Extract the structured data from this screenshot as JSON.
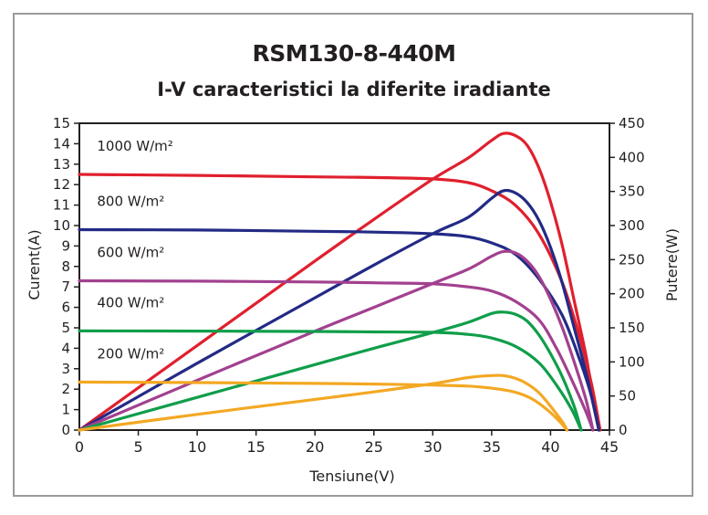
{
  "chart_data": {
    "type": "line",
    "title": "RSM130-8-440M",
    "subtitle": "I-V caracteristici la diferite iradiante",
    "xlabel": "Tensiune(V)",
    "ylabel_left": "Curent(A)",
    "ylabel_right": "Putere(W)",
    "xlim": [
      0,
      45
    ],
    "ylim_left": [
      0,
      15
    ],
    "ylim_right": [
      0,
      450
    ],
    "xticks": [
      0,
      5,
      10,
      15,
      20,
      25,
      30,
      35,
      40,
      45
    ],
    "yticks_left": [
      0,
      1,
      2,
      3,
      4,
      5,
      6,
      7,
      8,
      9,
      10,
      11,
      12,
      13,
      14,
      15
    ],
    "yticks_right": [
      0,
      50,
      100,
      150,
      200,
      250,
      300,
      350,
      400,
      450
    ],
    "grid": false,
    "series": [
      {
        "name": "1000 W/m²",
        "color": "#e0202e",
        "iv": [
          [
            0,
            12.5
          ],
          [
            10,
            12.45
          ],
          [
            20,
            12.38
          ],
          [
            25,
            12.35
          ],
          [
            30,
            12.28
          ],
          [
            33,
            12.1
          ],
          [
            35,
            11.7
          ],
          [
            37,
            11.0
          ],
          [
            39,
            9.6
          ],
          [
            41,
            7.2
          ],
          [
            42.5,
            4.5
          ],
          [
            43.5,
            2.2
          ],
          [
            44.2,
            0
          ]
        ],
        "pv": [
          [
            0,
            0
          ],
          [
            10,
            124
          ],
          [
            20,
            248
          ],
          [
            25,
            309
          ],
          [
            30,
            368
          ],
          [
            33,
            399
          ],
          [
            35,
            425
          ],
          [
            36,
            435
          ],
          [
            37,
            432
          ],
          [
            38,
            418
          ],
          [
            39,
            385
          ],
          [
            40,
            335
          ],
          [
            41,
            270
          ],
          [
            42,
            190
          ],
          [
            43,
            110
          ],
          [
            43.6,
            50
          ],
          [
            44.2,
            0
          ]
        ]
      },
      {
        "name": "800 W/m²",
        "color": "#232a85",
        "iv": [
          [
            0,
            9.8
          ],
          [
            10,
            9.78
          ],
          [
            20,
            9.72
          ],
          [
            25,
            9.68
          ],
          [
            30,
            9.6
          ],
          [
            33,
            9.45
          ],
          [
            35,
            9.15
          ],
          [
            37,
            8.6
          ],
          [
            39,
            7.4
          ],
          [
            41,
            5.6
          ],
          [
            42.5,
            3.4
          ],
          [
            43.5,
            1.6
          ],
          [
            44.1,
            0
          ]
        ],
        "pv": [
          [
            0,
            0
          ],
          [
            10,
            98
          ],
          [
            20,
            194
          ],
          [
            25,
            242
          ],
          [
            30,
            288
          ],
          [
            33,
            312
          ],
          [
            35,
            340
          ],
          [
            36,
            351
          ],
          [
            37,
            348
          ],
          [
            38,
            334
          ],
          [
            39,
            308
          ],
          [
            40,
            268
          ],
          [
            41,
            215
          ],
          [
            42,
            150
          ],
          [
            43,
            85
          ],
          [
            44.1,
            0
          ]
        ]
      },
      {
        "name": "600 W/m²",
        "color": "#a2418f",
        "iv": [
          [
            0,
            7.3
          ],
          [
            10,
            7.28
          ],
          [
            20,
            7.24
          ],
          [
            25,
            7.2
          ],
          [
            30,
            7.15
          ],
          [
            33,
            7.0
          ],
          [
            35,
            6.8
          ],
          [
            37,
            6.3
          ],
          [
            39,
            5.4
          ],
          [
            40.5,
            4.0
          ],
          [
            42,
            2.2
          ],
          [
            43,
            0.9
          ],
          [
            43.6,
            0
          ]
        ],
        "pv": [
          [
            0,
            0
          ],
          [
            10,
            73
          ],
          [
            20,
            145
          ],
          [
            25,
            180
          ],
          [
            30,
            215
          ],
          [
            33,
            236
          ],
          [
            35,
            255
          ],
          [
            36,
            262
          ],
          [
            37,
            260
          ],
          [
            38,
            248
          ],
          [
            39,
            226
          ],
          [
            40,
            192
          ],
          [
            41,
            150
          ],
          [
            42,
            100
          ],
          [
            43,
            45
          ],
          [
            43.6,
            0
          ]
        ]
      },
      {
        "name": "400 W/m²",
        "color": "#0f9e4a",
        "iv": [
          [
            0,
            4.85
          ],
          [
            10,
            4.84
          ],
          [
            20,
            4.82
          ],
          [
            25,
            4.8
          ],
          [
            30,
            4.78
          ],
          [
            33,
            4.68
          ],
          [
            35,
            4.5
          ],
          [
            37,
            4.1
          ],
          [
            39,
            3.3
          ],
          [
            40.5,
            2.2
          ],
          [
            41.8,
            1.0
          ],
          [
            42.6,
            0
          ]
        ],
        "pv": [
          [
            0,
            0
          ],
          [
            10,
            48
          ],
          [
            20,
            96
          ],
          [
            25,
            120
          ],
          [
            30,
            143
          ],
          [
            33,
            158
          ],
          [
            35,
            171
          ],
          [
            36,
            173
          ],
          [
            37,
            170
          ],
          [
            38,
            160
          ],
          [
            39,
            140
          ],
          [
            40,
            112
          ],
          [
            41,
            78
          ],
          [
            42,
            35
          ],
          [
            42.6,
            0
          ]
        ]
      },
      {
        "name": "200 W/m²",
        "color": "#f3a823",
        "iv": [
          [
            0,
            2.35
          ],
          [
            10,
            2.32
          ],
          [
            20,
            2.28
          ],
          [
            25,
            2.25
          ],
          [
            30,
            2.2
          ],
          [
            33,
            2.15
          ],
          [
            35,
            2.05
          ],
          [
            37,
            1.85
          ],
          [
            38.5,
            1.5
          ],
          [
            39.8,
            0.95
          ],
          [
            40.8,
            0.4
          ],
          [
            41.4,
            0
          ]
        ],
        "pv": [
          [
            0,
            0
          ],
          [
            10,
            23
          ],
          [
            20,
            45
          ],
          [
            25,
            56
          ],
          [
            30,
            68
          ],
          [
            33,
            77
          ],
          [
            35,
            80
          ],
          [
            36,
            80
          ],
          [
            37,
            76
          ],
          [
            38,
            68
          ],
          [
            39,
            55
          ],
          [
            40,
            35
          ],
          [
            41,
            12
          ],
          [
            41.4,
            0
          ]
        ]
      }
    ]
  }
}
